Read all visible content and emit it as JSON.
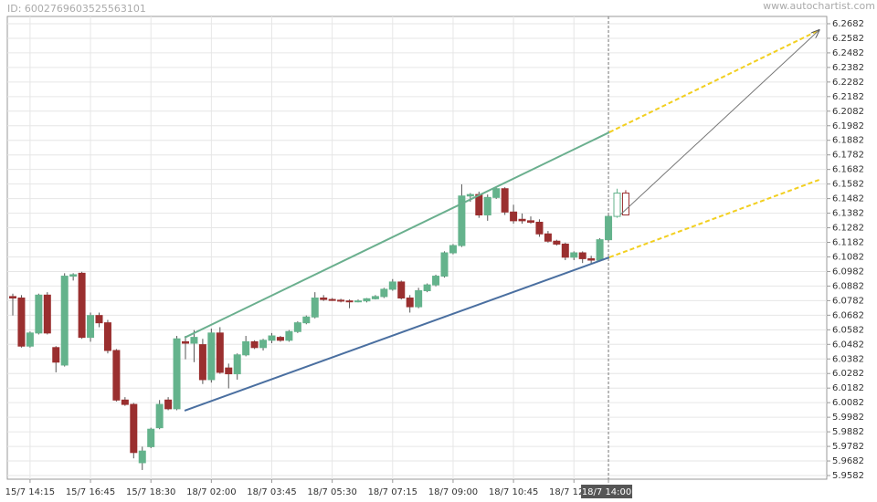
{
  "header": {
    "id_text": "ID: 6002769603525563101",
    "site": "www.autochartist.com"
  },
  "chart_data": {
    "type": "candlestick",
    "categories": [
      null,
      null,
      "15/7 14:15",
      null,
      null,
      null,
      null,
      null,
      null,
      "15/7 16:45",
      null,
      null,
      null,
      null,
      null,
      null,
      "15/7 18:30",
      null,
      null,
      null,
      null,
      null,
      null,
      "18/7 02:00",
      null,
      null,
      null,
      null,
      null,
      null,
      "18/7 03:45",
      null,
      null,
      null,
      null,
      null,
      null,
      "18/7 05:30",
      null,
      null,
      null,
      null,
      null,
      null,
      "18/7 07:15",
      null,
      null,
      null,
      null,
      null,
      null,
      "18/7 09:00",
      null,
      null,
      null,
      null,
      null,
      null,
      "18/7 10:45",
      null,
      null,
      null,
      null,
      null,
      null,
      "18/7 12:30",
      null,
      null,
      null,
      "18/7 14:00",
      null,
      null
    ],
    "open": [
      6.081,
      6.08,
      6.047,
      6.056,
      6.082,
      6.046,
      6.034,
      6.095,
      6.097,
      6.053,
      6.068,
      6.063,
      6.044,
      6.01,
      6.007,
      5.967,
      5.978,
      5.991,
      6.01,
      6.004,
      6.05,
      6.049,
      6.048,
      6.024,
      6.056,
      6.032,
      6.028,
      6.041,
      6.05,
      6.046,
      6.051,
      6.053,
      6.051,
      6.057,
      6.063,
      6.067,
      6.08,
      6.079,
      6.0785,
      6.078,
      6.0775,
      6.078,
      6.0795,
      6.081,
      6.086,
      6.091,
      6.08,
      6.074,
      6.085,
      6.089,
      6.095,
      6.111,
      6.116,
      6.15,
      6.151,
      6.137,
      6.149,
      6.155,
      6.139,
      6.134,
      6.133,
      6.132,
      6.124,
      6.119,
      6.117,
      6.108,
      6.111,
      6.107,
      6.106,
      6.12,
      6.136,
      6.152
    ],
    "high": [
      6.083,
      6.082,
      6.057,
      6.083,
      6.084,
      6.047,
      6.097,
      6.097,
      6.098,
      6.07,
      6.07,
      6.065,
      6.045,
      6.012,
      6.008,
      5.978,
      5.991,
      6.01,
      6.012,
      6.054,
      6.054,
      6.058,
      6.052,
      6.059,
      6.06,
      6.035,
      6.042,
      6.054,
      6.051,
      6.052,
      6.056,
      6.054,
      6.058,
      6.064,
      6.068,
      6.084,
      6.082,
      6.08,
      6.0795,
      6.079,
      6.079,
      6.08,
      6.082,
      6.087,
      6.093,
      6.092,
      6.082,
      6.087,
      6.09,
      6.096,
      6.112,
      6.117,
      6.158,
      6.152,
      6.153,
      6.151,
      6.156,
      6.156,
      6.144,
      6.138,
      6.136,
      6.134,
      6.126,
      6.12,
      6.118,
      6.112,
      6.112,
      6.109,
      6.121,
      6.137,
      6.155,
      6.154
    ],
    "low": [
      6.068,
      6.046,
      6.046,
      6.055,
      6.055,
      6.029,
      6.033,
      6.092,
      6.052,
      6.05,
      6.06,
      6.042,
      6.009,
      6.006,
      5.97,
      5.962,
      5.977,
      5.99,
      6.003,
      6.003,
      6.038,
      6.036,
      6.021,
      6.022,
      6.028,
      6.018,
      6.024,
      6.04,
      6.045,
      6.044,
      6.049,
      6.05,
      6.05,
      6.056,
      6.062,
      6.066,
      6.078,
      6.078,
      6.077,
      6.073,
      6.077,
      6.077,
      6.079,
      6.08,
      6.085,
      6.079,
      6.07,
      6.073,
      6.084,
      6.088,
      6.094,
      6.11,
      6.115,
      6.146,
      6.135,
      6.133,
      6.148,
      6.137,
      6.131,
      6.131,
      6.131,
      6.122,
      6.118,
      6.116,
      6.106,
      6.106,
      6.104,
      6.103,
      6.105,
      6.119,
      6.135,
      6.137
    ],
    "close": [
      6.08,
      6.047,
      6.056,
      6.082,
      6.056,
      6.036,
      6.095,
      6.096,
      6.053,
      6.068,
      6.063,
      6.044,
      6.01,
      6.007,
      5.974,
      5.975,
      5.99,
      6.007,
      6.004,
      6.052,
      6.049,
      6.053,
      6.024,
      6.056,
      6.029,
      6.028,
      6.041,
      6.05,
      6.046,
      6.051,
      6.054,
      6.051,
      6.057,
      6.063,
      6.067,
      6.08,
      6.079,
      6.0785,
      6.078,
      6.0775,
      6.078,
      6.0795,
      6.081,
      6.086,
      6.091,
      6.08,
      6.074,
      6.085,
      6.089,
      6.095,
      6.111,
      6.116,
      6.15,
      6.151,
      6.137,
      6.149,
      6.155,
      6.139,
      6.133,
      6.133,
      6.132,
      6.124,
      6.119,
      6.117,
      6.108,
      6.111,
      6.107,
      6.106,
      6.12,
      6.136,
      6.152,
      6.137
    ],
    "up_color": "#64b38c",
    "down_color": "#9a2f2f",
    "marker_index": 69,
    "lines": [
      {
        "color": "#6aaf8e",
        "dashed": false,
        "arrow": false,
        "x": [
          19.9,
          69.1
        ],
        "y": [
          6.0528,
          6.1937
        ]
      },
      {
        "color": "#4a6fa0",
        "dashed": false,
        "arrow": false,
        "x": [
          19.9,
          69.1
        ],
        "y": [
          6.0027,
          6.1079
        ]
      },
      {
        "color": "#f2cf1f",
        "dashed": true,
        "arrow": false,
        "x": [
          69.1,
          93.4
        ],
        "y": [
          6.1937,
          6.2638
        ]
      },
      {
        "color": "#f2cf1f",
        "dashed": true,
        "arrow": false,
        "x": [
          69.1,
          93.4
        ],
        "y": [
          6.1079,
          6.1611
        ]
      },
      {
        "color": "#777777",
        "dashed": false,
        "arrow": true,
        "x": [
          70.4,
          93.4
        ],
        "y": [
          6.1373,
          6.2638
        ]
      }
    ],
    "ylim": [
      5.9557,
      6.2732
    ],
    "yticks": [
      5.9582,
      5.9682,
      5.9782,
      5.9882,
      5.9982,
      6.0082,
      6.0182,
      6.0282,
      6.0382,
      6.0482,
      6.0582,
      6.0682,
      6.0782,
      6.0882,
      6.0982,
      6.1082,
      6.1182,
      6.1282,
      6.1382,
      6.1482,
      6.1582,
      6.1682,
      6.1782,
      6.1882,
      6.1982,
      6.2082,
      6.2182,
      6.2282,
      6.2382,
      6.2482,
      6.2582,
      6.2682
    ],
    "grid": true
  }
}
